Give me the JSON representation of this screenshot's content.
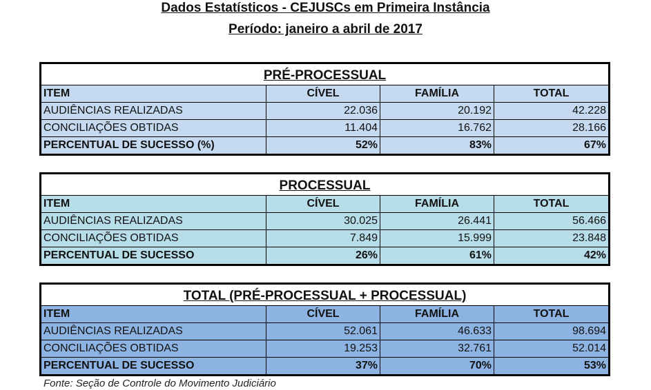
{
  "header": {
    "title": "Dados Estatísticos - CEJUSCs em Primeira Instância",
    "period": "Período: janeiro a abril de 2017"
  },
  "columns": {
    "item": "ITEM",
    "civel": "CÍVEL",
    "familia": "FAMÍLIA",
    "total": "TOTAL"
  },
  "tables": {
    "pre": {
      "title": "PRÉ-PROCESSUAL",
      "rows": [
        {
          "label": "AUDIÊNCIAS REALIZADAS",
          "civel": "22.036",
          "familia": "20.192",
          "total": "42.228"
        },
        {
          "label": "CONCILIAÇÕES OBTIDAS",
          "civel": "11.404",
          "familia": "16.762",
          "total": "28.166"
        },
        {
          "label": "PERCENTUAL DE SUCESSO (%)",
          "civel": "52%",
          "familia": "83%",
          "total": "67%"
        }
      ]
    },
    "proc": {
      "title": "PROCESSUAL",
      "rows": [
        {
          "label": "AUDIÊNCIAS REALIZADAS",
          "civel": "30.025",
          "familia": "26.441",
          "total": "56.466"
        },
        {
          "label": "CONCILIAÇÕES OBTIDAS",
          "civel": "7.849",
          "familia": "15.999",
          "total": "23.848"
        },
        {
          "label": "PERCENTUAL DE SUCESSO",
          "civel": "26%",
          "familia": "61%",
          "total": "42%"
        }
      ]
    },
    "total": {
      "title": "TOTAL (PRÉ-PROCESSUAL + PROCESSUAL)",
      "rows": [
        {
          "label": "AUDIÊNCIAS REALIZADAS",
          "civel": "52.061",
          "familia": "46.633",
          "total": "98.694"
        },
        {
          "label": "CONCILIAÇÕES OBTIDAS",
          "civel": "19.253",
          "familia": "32.761",
          "total": "52.014"
        },
        {
          "label": "PERCENTUAL DE SUCESSO",
          "civel": "37%",
          "familia": "70%",
          "total": "53%"
        }
      ]
    }
  },
  "footer": {
    "source": "Fonte: Seção de Controle do Movimento Judiciário"
  },
  "colors": {
    "pre_fill": "#c5d9f1",
    "proc_fill": "#b7dde8",
    "total_fill": "#8db3e2",
    "border": "#000000"
  }
}
